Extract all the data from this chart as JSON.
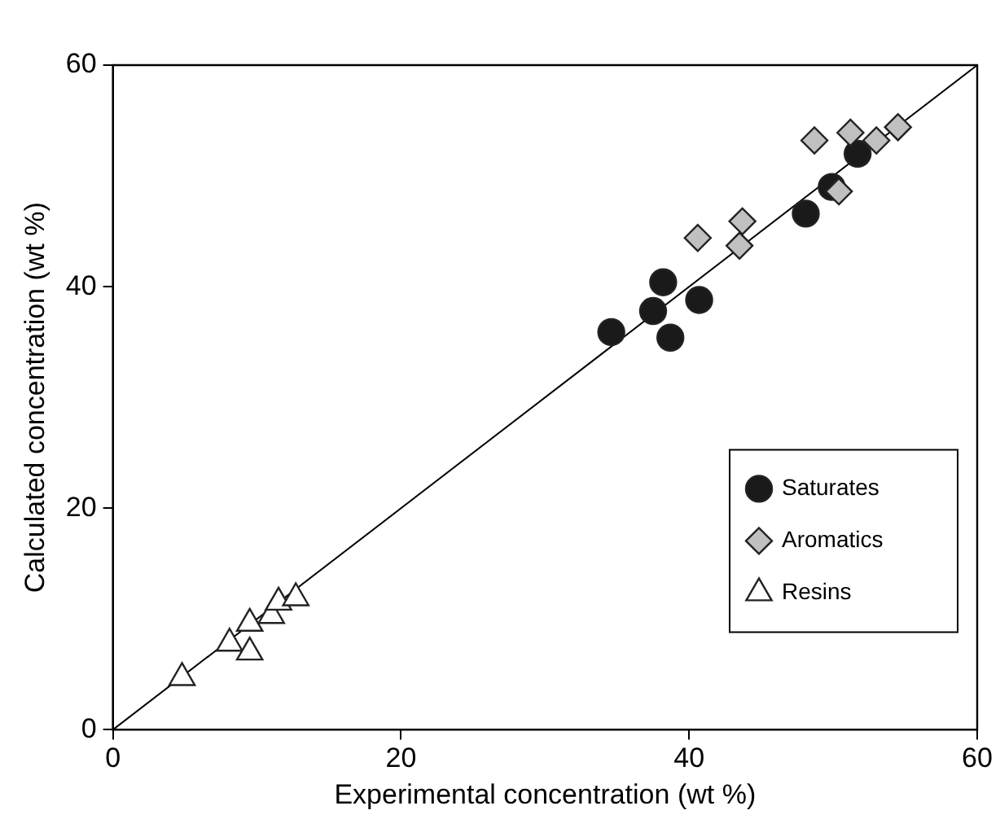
{
  "chart_data": {
    "type": "scatter",
    "xlabel": "Experimental concentration (wt %)",
    "ylabel": "Calculated concentration (wt %)",
    "xlim": [
      0,
      60
    ],
    "xticks": [
      0,
      20,
      40,
      60
    ],
    "ylim": [
      0,
      60
    ],
    "yticks": [
      0,
      20,
      40,
      60
    ],
    "grid": false,
    "legend": "bottom right",
    "series": [
      {
        "name": "Saturates",
        "color": "#1a1a1a",
        "marker": "circle",
        "x": [
          34.6,
          37.5,
          38.2,
          38.7,
          40.7,
          48.1,
          49.9,
          51.7
        ],
        "values": [
          35.9,
          37.8,
          40.4,
          35.4,
          38.8,
          46.6,
          49.0,
          52.0
        ]
      },
      {
        "name": "Aromatics",
        "color": "#c0c0c0",
        "marker": "diamond",
        "x": [
          40.6,
          43.7,
          43.5,
          48.7,
          51.2,
          53.0,
          54.5,
          50.4
        ],
        "values": [
          44.4,
          45.9,
          43.7,
          53.2,
          53.9,
          53.2,
          54.4,
          48.6
        ]
      },
      {
        "name": "Resins",
        "color": "#ffffff",
        "marker": "triangle",
        "x": [
          4.8,
          8.1,
          9.5,
          9.5,
          11.0,
          11.5,
          12.7
        ],
        "values": [
          4.7,
          7.8,
          7.0,
          9.6,
          10.3,
          11.5,
          11.9
        ]
      },
      {
        "type": "line",
        "color": "#000000",
        "x": [
          0,
          60
        ],
        "values": [
          0,
          60
        ]
      }
    ]
  }
}
